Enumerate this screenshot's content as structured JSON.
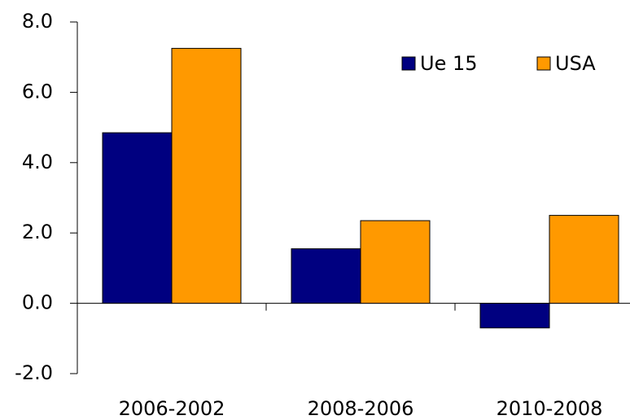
{
  "chart_data": {
    "type": "bar",
    "categories": [
      "2006-2002",
      "2008-2006",
      "2010-2008"
    ],
    "series": [
      {
        "name": "Ue 15",
        "color": "#000080",
        "values": [
          4.85,
          1.55,
          -0.7
        ]
      },
      {
        "name": "USA",
        "color": "#ff9900",
        "values": [
          7.25,
          2.35,
          2.5
        ]
      }
    ],
    "ylim": [
      -2,
      8
    ],
    "yticks": [
      {
        "value": -2,
        "label": "-2.0"
      },
      {
        "value": 0,
        "label": "0.0"
      },
      {
        "value": 2,
        "label": "2.0"
      },
      {
        "value": 4,
        "label": "4.0"
      },
      {
        "value": 6,
        "label": "6.0"
      },
      {
        "value": 8,
        "label": "8.0"
      }
    ],
    "grid": false,
    "legend": "top-right"
  }
}
